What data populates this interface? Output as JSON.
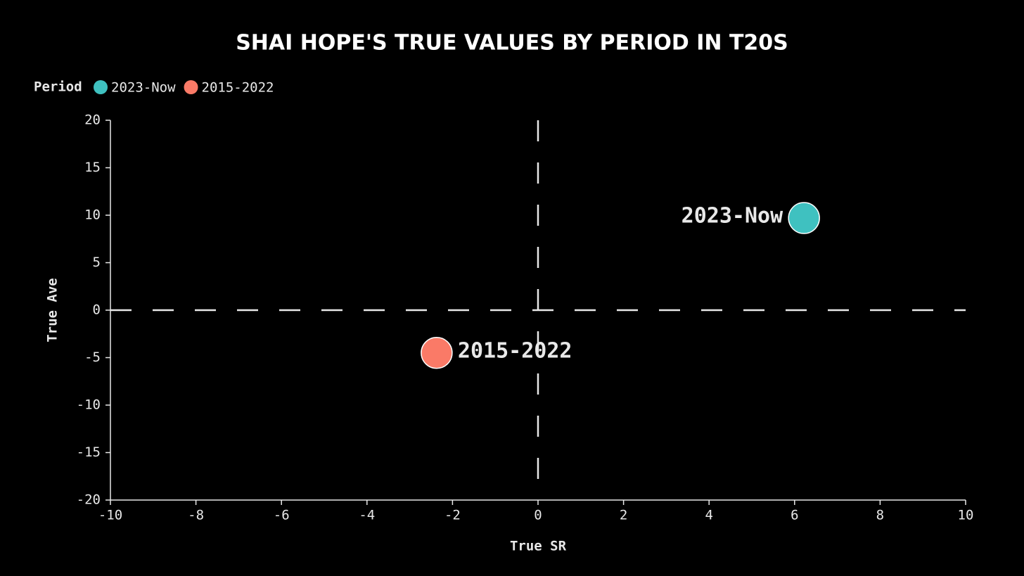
{
  "chart_data": {
    "type": "scatter",
    "title": "SHAI HOPE'S TRUE VALUES BY PERIOD IN T20S",
    "x_label": "True SR",
    "y_label": "True Ave",
    "legend_title": "Period",
    "legend": "top-left",
    "xlim": [
      -10,
      10
    ],
    "xticks": [
      -10,
      -8,
      -6,
      -4,
      -2,
      0,
      2,
      4,
      6,
      8,
      10
    ],
    "ylim": [
      -20,
      20
    ],
    "yticks": [
      -20,
      -15,
      -10,
      -5,
      0,
      5,
      10,
      15,
      20
    ],
    "reference_x": 0,
    "reference_y": 0,
    "series": [
      {
        "name": "2023-Now",
        "color": "#3fc1c0",
        "x": [
          6.22
        ],
        "values": [
          9.7
        ]
      },
      {
        "name": "2015-2022",
        "color": "#fa7a67",
        "x": [
          -2.37
        ],
        "values": [
          -4.5
        ]
      }
    ]
  }
}
